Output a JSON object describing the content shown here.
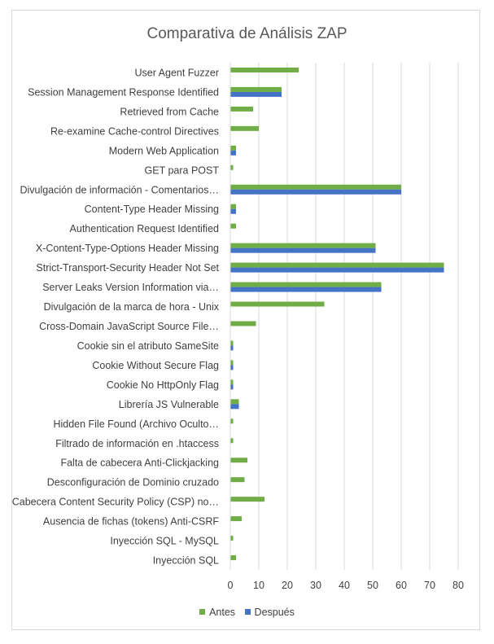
{
  "chart_data": {
    "type": "bar",
    "orientation": "horizontal",
    "title": "Comparativa de Análisis ZAP",
    "xlabel": "",
    "ylabel": "",
    "xlim": [
      0,
      80
    ],
    "x_ticks": [
      0,
      10,
      20,
      30,
      40,
      50,
      60,
      70,
      80
    ],
    "grid": true,
    "legend_position": "bottom",
    "categories": [
      "User Agent Fuzzer",
      "Session Management Response Identified",
      "Retrieved from Cache",
      "Re-examine Cache-control Directives",
      "Modern Web Application",
      "GET para POST",
      "Divulgación de información - Comentarios…",
      "Content-Type Header Missing",
      "Authentication Request Identified",
      "X-Content-Type-Options Header Missing",
      "Strict-Transport-Security Header Not Set",
      "Server Leaks Version Information via…",
      "Divulgación de la marca de hora - Unix",
      "Cross-Domain JavaScript Source File…",
      "Cookie sin el atributo SameSite",
      "Cookie Without Secure Flag",
      "Cookie No HttpOnly Flag",
      "Librería JS Vulnerable",
      "Hidden File Found (Archivo Oculto…",
      "Filtrado de información en .htaccess",
      "Falta de cabecera Anti-Clickjacking",
      "Desconfiguración de Dominio cruzado",
      "Cabecera Content Security Policy (CSP) no…",
      "Ausencia de fichas (tokens) Anti-CSRF",
      "Inyección SQL - MySQL",
      "Inyección SQL"
    ],
    "series": [
      {
        "name": "Antes",
        "color": "#70ad47",
        "values": [
          24,
          18,
          8,
          10,
          2,
          1,
          60,
          2,
          2,
          51,
          75,
          53,
          33,
          9,
          1,
          1,
          1,
          3,
          1,
          1,
          6,
          5,
          12,
          4,
          1,
          2
        ]
      },
      {
        "name": "Después",
        "color": "#4472c4",
        "values": [
          0,
          18,
          0,
          0,
          2,
          0,
          60,
          2,
          0,
          51,
          75,
          53,
          0,
          0,
          1,
          1,
          1,
          3,
          0,
          0,
          0,
          0,
          0,
          0,
          0,
          0
        ]
      }
    ]
  }
}
